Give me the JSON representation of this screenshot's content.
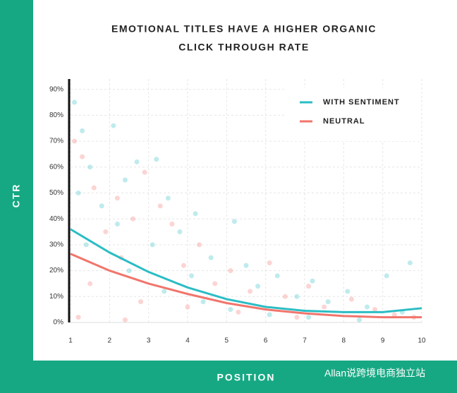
{
  "chart_data": {
    "type": "line",
    "title": [
      "EMOTIONAL TITLES HAVE A HIGHER ORGANIC",
      "CLICK THROUGH RATE"
    ],
    "x_label": "POSITION",
    "y_label": "CTR",
    "xlim": [
      1,
      10
    ],
    "xticks": [
      1,
      2,
      3,
      4,
      5,
      6,
      7,
      8,
      9,
      10
    ],
    "ylim": [
      0,
      94
    ],
    "yticks": [
      {
        "value": 0,
        "label": "0%"
      },
      {
        "value": 10,
        "label": "10%"
      },
      {
        "value": 20,
        "label": "20%"
      },
      {
        "value": 30,
        "label": "30%"
      },
      {
        "value": 40,
        "label": "40%"
      },
      {
        "value": 50,
        "label": "50%"
      },
      {
        "value": 60,
        "label": "60%"
      },
      {
        "value": 70,
        "label": "70%"
      },
      {
        "value": 80,
        "label": "80%"
      },
      {
        "value": 90,
        "label": "90%"
      }
    ],
    "grid": true,
    "legend": "upper right",
    "series": [
      {
        "name": "WITH SENTIMENT",
        "color": "#2bbdc4",
        "x": [
          1,
          2,
          3,
          4,
          5,
          6,
          7,
          8,
          9,
          10
        ],
        "values": [
          36,
          27,
          19.5,
          13.5,
          9,
          6,
          4.5,
          4,
          4,
          5.5
        ],
        "points": {
          "x": [
            1.1,
            1.3,
            1.5,
            1.2,
            1.8,
            2.1,
            2.4,
            2.7,
            2.2,
            3.2,
            3.5,
            3.1,
            3.8,
            4.2,
            4.6,
            4.1,
            5.2,
            5.5,
            5.8,
            6.3,
            6.8,
            7.2,
            7.6,
            8.1,
            8.6,
            9.1,
            9.5,
            9.7,
            1.4,
            2.5,
            3.4,
            4.4,
            5.1,
            6.1,
            7.1,
            8.4
          ],
          "y": [
            85,
            74,
            60,
            50,
            45,
            76,
            55,
            62,
            38,
            63,
            48,
            30,
            35,
            42,
            25,
            18,
            39,
            22,
            14,
            18,
            10,
            16,
            8,
            12,
            6,
            18,
            4,
            23,
            30,
            20,
            12,
            8,
            5,
            3,
            2,
            1
          ]
        }
      },
      {
        "name": "NEUTRAL",
        "color": "#f1756c",
        "x": [
          1,
          2,
          3,
          4,
          5,
          6,
          7,
          8,
          9,
          10
        ],
        "values": [
          26.5,
          20,
          15,
          11,
          7.5,
          5,
          3.5,
          2.5,
          2,
          2
        ],
        "points": {
          "x": [
            1.1,
            1.3,
            1.6,
            1.9,
            2.2,
            2.6,
            2.9,
            2.3,
            3.3,
            3.6,
            3.9,
            4.3,
            4.7,
            5.1,
            5.6,
            6.1,
            6.5,
            7.1,
            7.5,
            8.2,
            8.8,
            9.3,
            9.8,
            1.5,
            2.8,
            4.0,
            5.3,
            6.8,
            1.2,
            2.4
          ],
          "y": [
            70,
            64,
            52,
            35,
            48,
            40,
            58,
            25,
            45,
            38,
            22,
            30,
            15,
            20,
            12,
            23,
            10,
            14,
            6,
            9,
            5,
            3,
            2,
            15,
            8,
            6,
            4,
            2,
            2,
            1
          ]
        }
      }
    ]
  },
  "watermark": "Allan说跨境电商独立站"
}
